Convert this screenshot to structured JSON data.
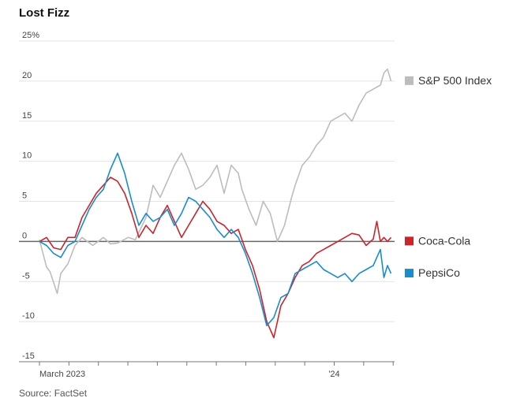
{
  "title": "Lost Fizz",
  "source": "Source: FactSet",
  "chart_data": {
    "type": "line",
    "title": "Lost Fizz",
    "xlabel": "",
    "ylabel": "%",
    "ylim": [
      -15,
      25
    ],
    "yticks": [
      {
        "value": 25,
        "label": "25%"
      },
      {
        "value": 20,
        "label": "20"
      },
      {
        "value": 15,
        "label": "15"
      },
      {
        "value": 10,
        "label": "10"
      },
      {
        "value": 5,
        "label": "5"
      },
      {
        "value": 0,
        "label": "0"
      },
      {
        "value": -5,
        "label": "-5"
      },
      {
        "value": -10,
        "label": "-10"
      },
      {
        "value": -15,
        "label": "-15"
      }
    ],
    "xlim": [
      0,
      100
    ],
    "xticks": [
      {
        "value": 0,
        "label": "March 2023"
      },
      {
        "value": 8.3,
        "label": ""
      },
      {
        "value": 16.6,
        "label": ""
      },
      {
        "value": 24.9,
        "label": ""
      },
      {
        "value": 33.2,
        "label": ""
      },
      {
        "value": 41.5,
        "label": ""
      },
      {
        "value": 49.8,
        "label": ""
      },
      {
        "value": 58.1,
        "label": ""
      },
      {
        "value": 66.4,
        "label": ""
      },
      {
        "value": 74.7,
        "label": ""
      },
      {
        "value": 83.0,
        "label": "'24"
      },
      {
        "value": 91.3,
        "label": ""
      },
      {
        "value": 99.6,
        "label": ""
      }
    ],
    "series": [
      {
        "name": "S&P 500 Index",
        "color": "#bdbdbd",
        "x": [
          0,
          2,
          3,
          5,
          6,
          8,
          10,
          12,
          15,
          18,
          20,
          22,
          25,
          27,
          30,
          32,
          34,
          36,
          38,
          40,
          42,
          44,
          46,
          48,
          50,
          52,
          54,
          56,
          57,
          59,
          61,
          63,
          65,
          67,
          69,
          71,
          72,
          74,
          76,
          78,
          80,
          82,
          84,
          86,
          88,
          90,
          92,
          94,
          96,
          97,
          98,
          99
        ],
        "values": [
          0.2,
          -3.2,
          -3.8,
          -6.5,
          -4.0,
          -2.8,
          -0.5,
          0.5,
          -0.5,
          0.5,
          -0.3,
          -0.2,
          0.5,
          0.2,
          3.0,
          7.0,
          5.5,
          7.5,
          9.5,
          11.0,
          9.0,
          6.5,
          7.0,
          8.0,
          9.5,
          6.0,
          9.5,
          8.5,
          6.5,
          4.0,
          2.0,
          5.0,
          3.5,
          0.0,
          2.0,
          5.5,
          7.0,
          9.5,
          10.5,
          12.0,
          13.0,
          15.0,
          15.5,
          16.0,
          15.0,
          17.0,
          18.5,
          19.0,
          19.5,
          21.0,
          21.5,
          20.0
        ]
      },
      {
        "name": "Coca-Cola",
        "color": "#c9252c",
        "x": [
          0,
          2,
          4,
          6,
          8,
          10,
          12,
          14,
          16,
          18,
          20,
          22,
          24,
          26,
          28,
          30,
          32,
          34,
          36,
          38,
          40,
          42,
          44,
          46,
          48,
          50,
          52,
          54,
          56,
          58,
          60,
          62,
          64,
          66,
          68,
          70,
          72,
          74,
          76,
          78,
          80,
          82,
          84,
          86,
          88,
          90,
          92,
          94,
          95,
          96,
          97,
          98,
          99
        ],
        "values": [
          0.0,
          0.5,
          -0.8,
          -1.0,
          0.5,
          0.5,
          3.0,
          4.5,
          6.0,
          7.0,
          8.0,
          7.5,
          6.0,
          3.5,
          0.5,
          2.0,
          1.0,
          3.0,
          4.5,
          2.5,
          0.5,
          2.0,
          3.5,
          5.0,
          4.0,
          2.5,
          2.0,
          1.0,
          1.5,
          -1.0,
          -3.0,
          -6.0,
          -10.0,
          -12.0,
          -8.0,
          -6.5,
          -4.5,
          -3.0,
          -2.5,
          -1.5,
          -1.0,
          -0.5,
          0.0,
          0.5,
          1.0,
          0.8,
          -0.5,
          0.3,
          2.5,
          0.0,
          0.5,
          0.0,
          0.5
        ]
      },
      {
        "name": "PepsiCo",
        "color": "#1a8ccc",
        "x": [
          0,
          2,
          4,
          6,
          8,
          10,
          12,
          14,
          16,
          18,
          20,
          22,
          24,
          26,
          28,
          30,
          32,
          34,
          36,
          38,
          40,
          42,
          44,
          46,
          48,
          50,
          52,
          54,
          56,
          58,
          60,
          62,
          64,
          66,
          68,
          70,
          72,
          74,
          76,
          78,
          80,
          82,
          84,
          86,
          88,
          90,
          92,
          94,
          95,
          96,
          97,
          98,
          99
        ],
        "values": [
          0.0,
          -0.5,
          -1.5,
          -2.0,
          -0.5,
          0.0,
          2.0,
          4.0,
          5.5,
          6.5,
          9.0,
          11.0,
          8.5,
          5.0,
          2.0,
          3.5,
          2.5,
          3.0,
          4.0,
          2.0,
          3.5,
          5.5,
          5.0,
          4.0,
          3.0,
          1.5,
          0.5,
          1.5,
          0.5,
          -1.5,
          -4.0,
          -7.0,
          -10.5,
          -9.5,
          -7.0,
          -6.5,
          -4.0,
          -3.5,
          -3.0,
          -2.5,
          -3.5,
          -4.0,
          -4.5,
          -4.0,
          -5.0,
          -4.0,
          -3.5,
          -3.0,
          -2.0,
          -1.0,
          -4.5,
          -3.0,
          -4.0
        ]
      }
    ]
  }
}
